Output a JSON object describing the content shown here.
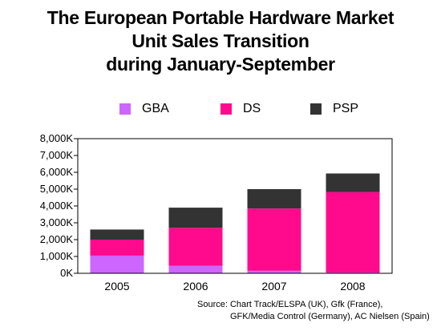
{
  "title_lines": [
    "The European Portable Hardware Market",
    "Unit Sales Transition",
    "during January-September"
  ],
  "legend": [
    {
      "name": "GBA",
      "color": "#cc66ff"
    },
    {
      "name": "DS",
      "color": "#ff0a8c"
    },
    {
      "name": "PSP",
      "color": "#333333"
    }
  ],
  "source": {
    "line1": "Source:  Chart Track/ELSPA (UK), Gfk (France),",
    "line2": "GFK/Media Control (Germany), AC Nielsen (Spain)"
  },
  "chart_data": {
    "type": "bar",
    "stacked": true,
    "categories": [
      "2005",
      "2006",
      "2007",
      "2008"
    ],
    "series": [
      {
        "name": "GBA",
        "color": "#cc66ff",
        "values": [
          1050,
          450,
          150,
          50
        ]
      },
      {
        "name": "DS",
        "color": "#ff0a8c",
        "values": [
          950,
          2250,
          3700,
          4780
        ]
      },
      {
        "name": "PSP",
        "color": "#333333",
        "values": [
          600,
          1200,
          1150,
          1100
        ]
      }
    ],
    "ylim": [
      0,
      8000
    ],
    "yticks": [
      0,
      1000,
      2000,
      3000,
      4000,
      5000,
      6000,
      7000,
      8000
    ],
    "ytick_labels": [
      "0K",
      "1,000K",
      "2,000K",
      "3,000K",
      "4,000K",
      "5,000K",
      "6,000K",
      "7,000K",
      "8,000K"
    ],
    "grid": false,
    "legend_position": "top"
  }
}
